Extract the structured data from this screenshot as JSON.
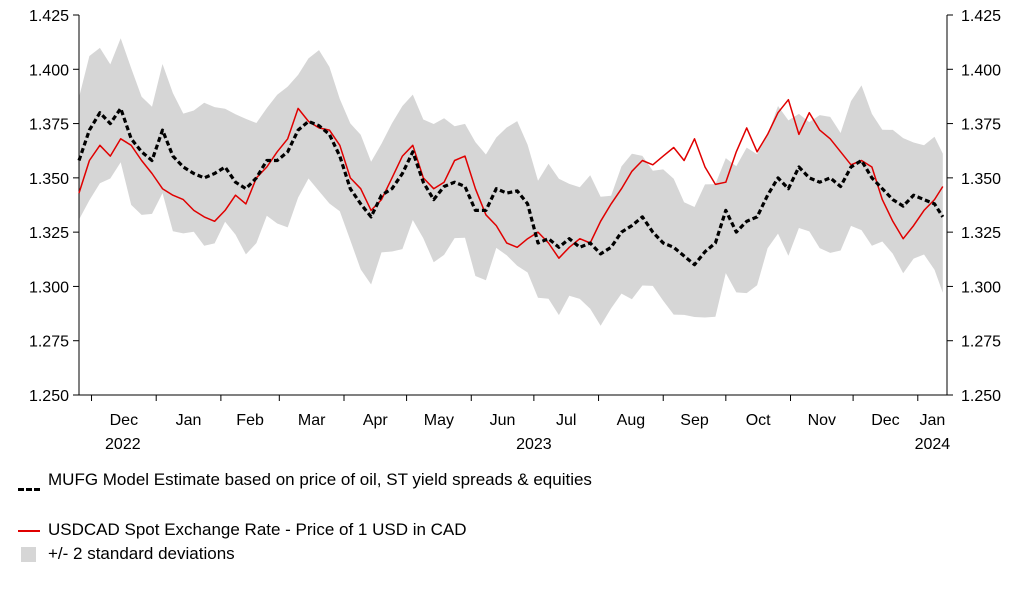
{
  "chart_data": {
    "type": "line",
    "title": "",
    "xlabel": "",
    "ylabel": "",
    "ylim": [
      1.25,
      1.425
    ],
    "yticks": [
      "1.250",
      "1.275",
      "1.300",
      "1.325",
      "1.350",
      "1.375",
      "1.400",
      "1.425"
    ],
    "months": [
      "Dec",
      "Jan",
      "Feb",
      "Mar",
      "Apr",
      "May",
      "Jun",
      "Jul",
      "Aug",
      "Sep",
      "Oct",
      "Nov",
      "Dec",
      "Jan"
    ],
    "years": [
      "2022",
      "2023",
      "2024"
    ],
    "x_range": [
      "2022-11-25",
      "2024-01-15"
    ],
    "grid": false,
    "legend_position": "bottom",
    "band_half_width": 0.029,
    "series": [
      {
        "name": "USDCAD Spot Exchange Rate - Price of 1 USD in CAD",
        "color": "#e00000",
        "points": [
          [
            "2022-11-25",
            1.343
          ],
          [
            "2022-11-30",
            1.358
          ],
          [
            "2022-12-05",
            1.365
          ],
          [
            "2022-12-10",
            1.36
          ],
          [
            "2022-12-15",
            1.368
          ],
          [
            "2022-12-20",
            1.365
          ],
          [
            "2022-12-25",
            1.358
          ],
          [
            "2022-12-30",
            1.352
          ],
          [
            "2023-01-04",
            1.345
          ],
          [
            "2023-01-09",
            1.342
          ],
          [
            "2023-01-14",
            1.34
          ],
          [
            "2023-01-19",
            1.335
          ],
          [
            "2023-01-24",
            1.332
          ],
          [
            "2023-01-29",
            1.33
          ],
          [
            "2023-02-03",
            1.335
          ],
          [
            "2023-02-08",
            1.342
          ],
          [
            "2023-02-13",
            1.338
          ],
          [
            "2023-02-18",
            1.35
          ],
          [
            "2023-02-23",
            1.355
          ],
          [
            "2023-02-28",
            1.362
          ],
          [
            "2023-03-05",
            1.368
          ],
          [
            "2023-03-10",
            1.382
          ],
          [
            "2023-03-15",
            1.376
          ],
          [
            "2023-03-20",
            1.373
          ],
          [
            "2023-03-25",
            1.372
          ],
          [
            "2023-03-30",
            1.365
          ],
          [
            "2023-04-04",
            1.35
          ],
          [
            "2023-04-09",
            1.345
          ],
          [
            "2023-04-14",
            1.335
          ],
          [
            "2023-04-19",
            1.34
          ],
          [
            "2023-04-24",
            1.35
          ],
          [
            "2023-04-29",
            1.36
          ],
          [
            "2023-05-04",
            1.365
          ],
          [
            "2023-05-09",
            1.35
          ],
          [
            "2023-05-14",
            1.345
          ],
          [
            "2023-05-19",
            1.348
          ],
          [
            "2023-05-24",
            1.358
          ],
          [
            "2023-05-29",
            1.36
          ],
          [
            "2023-06-03",
            1.345
          ],
          [
            "2023-06-08",
            1.333
          ],
          [
            "2023-06-13",
            1.328
          ],
          [
            "2023-06-18",
            1.32
          ],
          [
            "2023-06-23",
            1.318
          ],
          [
            "2023-06-28",
            1.322
          ],
          [
            "2023-07-03",
            1.325
          ],
          [
            "2023-07-08",
            1.32
          ],
          [
            "2023-07-13",
            1.313
          ],
          [
            "2023-07-18",
            1.318
          ],
          [
            "2023-07-23",
            1.322
          ],
          [
            "2023-07-28",
            1.32
          ],
          [
            "2023-08-02",
            1.33
          ],
          [
            "2023-08-07",
            1.338
          ],
          [
            "2023-08-12",
            1.345
          ],
          [
            "2023-08-17",
            1.353
          ],
          [
            "2023-08-22",
            1.358
          ],
          [
            "2023-08-27",
            1.356
          ],
          [
            "2023-09-01",
            1.36
          ],
          [
            "2023-09-06",
            1.364
          ],
          [
            "2023-09-11",
            1.358
          ],
          [
            "2023-09-16",
            1.368
          ],
          [
            "2023-09-21",
            1.355
          ],
          [
            "2023-09-26",
            1.347
          ],
          [
            "2023-10-01",
            1.348
          ],
          [
            "2023-10-06",
            1.362
          ],
          [
            "2023-10-11",
            1.373
          ],
          [
            "2023-10-16",
            1.362
          ],
          [
            "2023-10-21",
            1.37
          ],
          [
            "2023-10-26",
            1.38
          ],
          [
            "2023-10-31",
            1.386
          ],
          [
            "2023-11-05",
            1.37
          ],
          [
            "2023-11-10",
            1.38
          ],
          [
            "2023-11-15",
            1.372
          ],
          [
            "2023-11-20",
            1.368
          ],
          [
            "2023-11-25",
            1.362
          ],
          [
            "2023-11-30",
            1.356
          ],
          [
            "2023-12-05",
            1.358
          ],
          [
            "2023-12-10",
            1.355
          ],
          [
            "2023-12-15",
            1.34
          ],
          [
            "2023-12-20",
            1.33
          ],
          [
            "2023-12-25",
            1.322
          ],
          [
            "2023-12-30",
            1.328
          ],
          [
            "2024-01-04",
            1.335
          ],
          [
            "2024-01-09",
            1.34
          ],
          [
            "2024-01-13",
            1.346
          ]
        ]
      },
      {
        "name": "MUFG Model Estimate based on price of oil, ST yield spreads & equities",
        "color": "#000000",
        "points": [
          [
            "2022-11-25",
            1.358
          ],
          [
            "2022-11-30",
            1.372
          ],
          [
            "2022-12-05",
            1.38
          ],
          [
            "2022-12-10",
            1.375
          ],
          [
            "2022-12-15",
            1.382
          ],
          [
            "2022-12-20",
            1.368
          ],
          [
            "2022-12-25",
            1.362
          ],
          [
            "2022-12-30",
            1.358
          ],
          [
            "2023-01-04",
            1.372
          ],
          [
            "2023-01-09",
            1.36
          ],
          [
            "2023-01-14",
            1.355
          ],
          [
            "2023-01-19",
            1.352
          ],
          [
            "2023-01-24",
            1.35
          ],
          [
            "2023-01-29",
            1.352
          ],
          [
            "2023-02-03",
            1.355
          ],
          [
            "2023-02-08",
            1.348
          ],
          [
            "2023-02-13",
            1.345
          ],
          [
            "2023-02-18",
            1.35
          ],
          [
            "2023-02-23",
            1.358
          ],
          [
            "2023-02-28",
            1.358
          ],
          [
            "2023-03-05",
            1.362
          ],
          [
            "2023-03-10",
            1.372
          ],
          [
            "2023-03-15",
            1.376
          ],
          [
            "2023-03-20",
            1.374
          ],
          [
            "2023-03-25",
            1.37
          ],
          [
            "2023-03-30",
            1.36
          ],
          [
            "2023-04-04",
            1.345
          ],
          [
            "2023-04-09",
            1.338
          ],
          [
            "2023-04-14",
            1.332
          ],
          [
            "2023-04-19",
            1.342
          ],
          [
            "2023-04-24",
            1.345
          ],
          [
            "2023-04-29",
            1.352
          ],
          [
            "2023-05-04",
            1.362
          ],
          [
            "2023-05-09",
            1.348
          ],
          [
            "2023-05-14",
            1.34
          ],
          [
            "2023-05-19",
            1.346
          ],
          [
            "2023-05-24",
            1.348
          ],
          [
            "2023-05-29",
            1.346
          ],
          [
            "2023-06-03",
            1.335
          ],
          [
            "2023-06-08",
            1.335
          ],
          [
            "2023-06-13",
            1.345
          ],
          [
            "2023-06-18",
            1.343
          ],
          [
            "2023-06-23",
            1.344
          ],
          [
            "2023-06-28",
            1.338
          ],
          [
            "2023-07-03",
            1.32
          ],
          [
            "2023-07-08",
            1.322
          ],
          [
            "2023-07-13",
            1.318
          ],
          [
            "2023-07-18",
            1.322
          ],
          [
            "2023-07-23",
            1.318
          ],
          [
            "2023-07-28",
            1.32
          ],
          [
            "2023-08-02",
            1.315
          ],
          [
            "2023-08-07",
            1.318
          ],
          [
            "2023-08-12",
            1.325
          ],
          [
            "2023-08-17",
            1.328
          ],
          [
            "2023-08-22",
            1.332
          ],
          [
            "2023-08-27",
            1.325
          ],
          [
            "2023-09-01",
            1.32
          ],
          [
            "2023-09-06",
            1.318
          ],
          [
            "2023-09-11",
            1.314
          ],
          [
            "2023-09-16",
            1.31
          ],
          [
            "2023-09-21",
            1.316
          ],
          [
            "2023-09-26",
            1.32
          ],
          [
            "2023-10-01",
            1.335
          ],
          [
            "2023-10-06",
            1.325
          ],
          [
            "2023-10-11",
            1.33
          ],
          [
            "2023-10-16",
            1.332
          ],
          [
            "2023-10-21",
            1.342
          ],
          [
            "2023-10-26",
            1.35
          ],
          [
            "2023-10-31",
            1.345
          ],
          [
            "2023-11-05",
            1.355
          ],
          [
            "2023-11-10",
            1.35
          ],
          [
            "2023-11-15",
            1.348
          ],
          [
            "2023-11-20",
            1.35
          ],
          [
            "2023-11-25",
            1.346
          ],
          [
            "2023-11-30",
            1.355
          ],
          [
            "2023-12-05",
            1.358
          ],
          [
            "2023-12-10",
            1.35
          ],
          [
            "2023-12-15",
            1.345
          ],
          [
            "2023-12-20",
            1.34
          ],
          [
            "2023-12-25",
            1.337
          ],
          [
            "2023-12-30",
            1.342
          ],
          [
            "2024-01-04",
            1.34
          ],
          [
            "2024-01-09",
            1.338
          ],
          [
            "2024-01-13",
            1.332
          ]
        ]
      }
    ],
    "band": {
      "name": "+/- 2 standard deviations",
      "color": "#d6d6d6"
    }
  },
  "legend": {
    "model": "MUFG Model Estimate based on price of oil, ST yield spreads & equities",
    "spot": "USDCAD Spot Exchange Rate - Price of 1 USD in CAD",
    "band": "+/- 2 standard deviations"
  }
}
